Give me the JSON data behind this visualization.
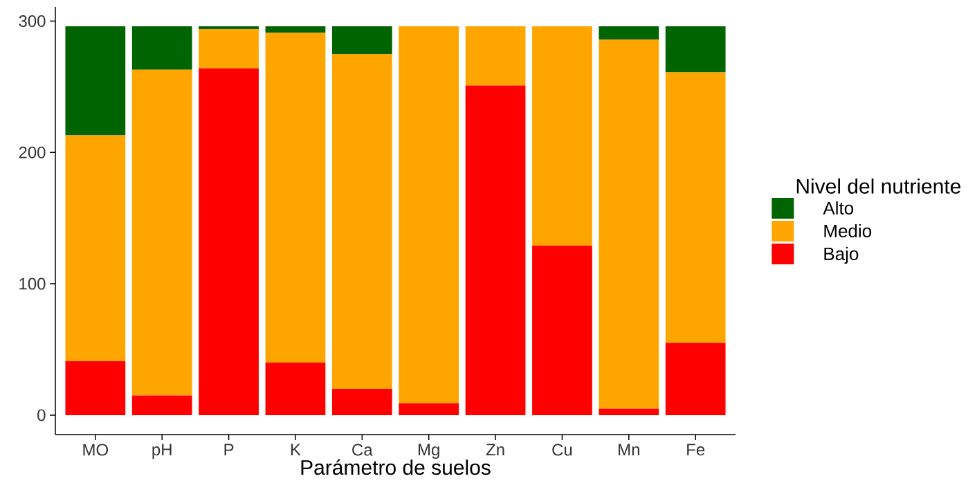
{
  "chart_data": {
    "type": "bar",
    "stacked": true,
    "xlabel": "Parámetro de suelos",
    "legend_title": "Nivel del nutriente",
    "categories": [
      "MO",
      "pH",
      "P",
      "K",
      "Ca",
      "Mg",
      "Zn",
      "Cu",
      "Mn",
      "Fe"
    ],
    "series": [
      {
        "name": "Bajo",
        "color": "#ff0000",
        "values": [
          41,
          15,
          264,
          40,
          20,
          9,
          251,
          129,
          5,
          55
        ]
      },
      {
        "name": "Medio",
        "color": "#ffa500",
        "values": [
          172,
          248,
          30,
          251,
          255,
          287,
          45,
          167,
          281,
          206
        ]
      },
      {
        "name": "Alto",
        "color": "#006400",
        "values": [
          83,
          33,
          2,
          5,
          21,
          0,
          0,
          0,
          10,
          35
        ]
      }
    ],
    "ylim": [
      -14.8,
      310.8
    ],
    "yticks": [
      0,
      100,
      200,
      300
    ],
    "legend": "right",
    "grid": false
  }
}
